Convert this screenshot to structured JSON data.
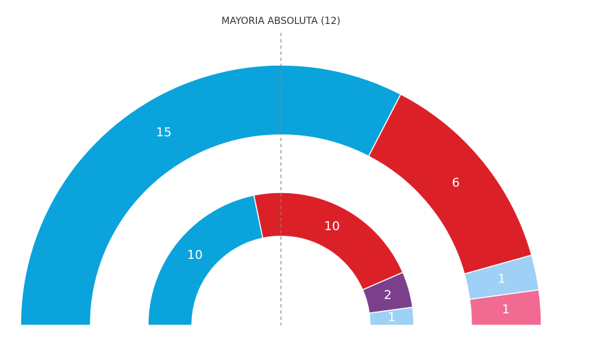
{
  "chart_data": [
    {
      "type": "semidonut",
      "annotation": "MAYORIA ABSOLUTA (12)",
      "values": [
        15,
        6,
        1,
        1
      ],
      "colors": [
        "#0aa3dc",
        "#dc2027",
        "#9fd0f5",
        "#f06a92"
      ]
    },
    {
      "type": "semidonut",
      "values": [
        10,
        10,
        2,
        1
      ],
      "colors": [
        "#0aa3dc",
        "#dc2027",
        "#7b3f8c",
        "#9fd0f5"
      ]
    }
  ]
}
